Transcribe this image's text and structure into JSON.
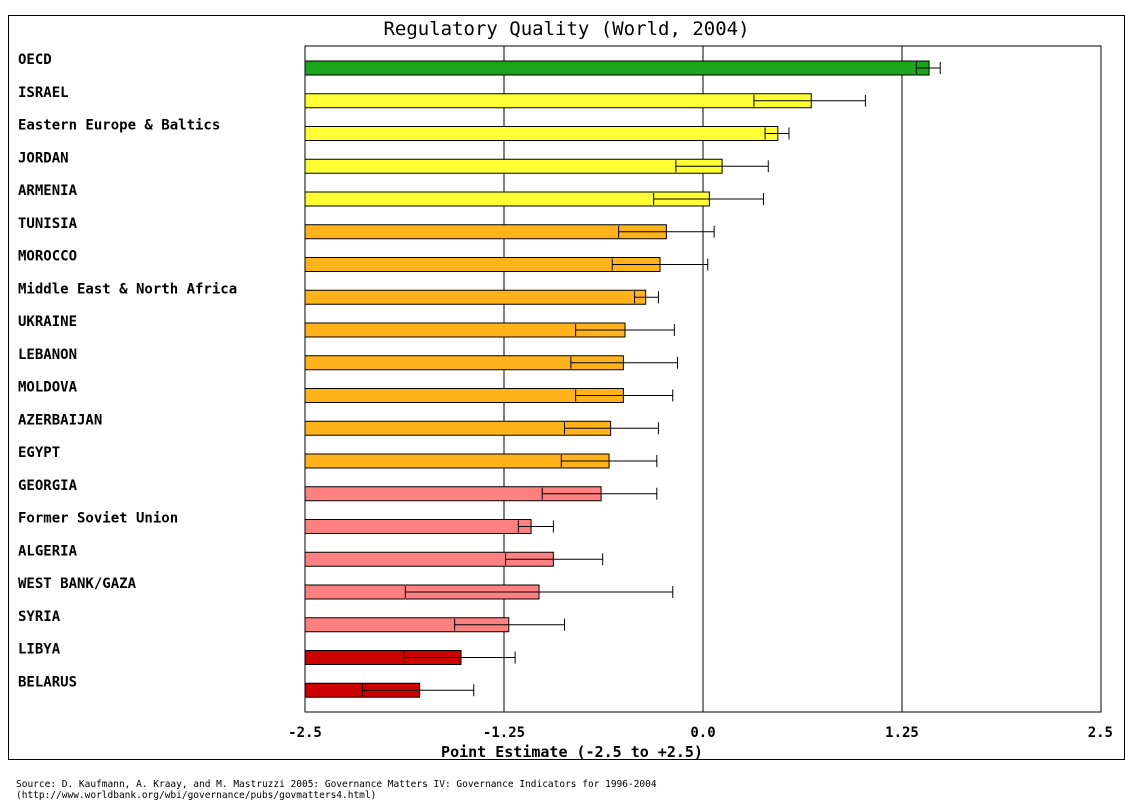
{
  "chart_data": {
    "type": "bar",
    "orientation": "horizontal",
    "title": "Regulatory Quality (World, 2004)",
    "xlabel": "Point Estimate (-2.5 to +2.5)",
    "xlim": [
      -2.5,
      2.5
    ],
    "xticks": [
      "-2.5",
      "-1.25",
      "0.0",
      "1.25",
      "2.5"
    ],
    "xtick_values": [
      -2.5,
      -1.25,
      0,
      1.25,
      2.5
    ],
    "grid": "vertical lines at ticks",
    "categories": [
      "OECD",
      "ISRAEL",
      "Eastern Europe & Baltics",
      "JORDAN",
      "ARMENIA",
      "TUNISIA",
      "MOROCCO",
      "Middle East & North Africa",
      "UKRAINE",
      "LEBANON",
      "MOLDOVA",
      "AZERBAIJAN",
      "EGYPT",
      "GEORGIA",
      "Former Soviet Union",
      "ALGERIA",
      "WEST BANK/GAZA",
      "SYRIA",
      "LIBYA",
      "BELARUS"
    ],
    "values": [
      1.42,
      0.68,
      0.47,
      0.12,
      0.04,
      -0.23,
      -0.27,
      -0.36,
      -0.49,
      -0.5,
      -0.5,
      -0.58,
      -0.59,
      -0.64,
      -1.08,
      -0.94,
      -1.03,
      -1.22,
      -1.52,
      -1.78
    ],
    "err_low": [
      1.34,
      0.32,
      0.39,
      -0.17,
      -0.31,
      -0.53,
      -0.57,
      -0.43,
      -0.8,
      -0.83,
      -0.8,
      -0.87,
      -0.89,
      -1.01,
      -1.16,
      -1.24,
      -1.87,
      -1.56,
      -1.88,
      -2.14
    ],
    "err_high": [
      1.49,
      1.02,
      0.54,
      0.41,
      0.38,
      0.07,
      0.03,
      -0.28,
      -0.18,
      -0.16,
      -0.19,
      -0.28,
      -0.29,
      -0.29,
      -0.94,
      -0.63,
      -0.19,
      -0.87,
      -1.18,
      -1.44
    ],
    "colors": [
      "#1aa51a",
      "#ffff33",
      "#ffff33",
      "#ffff33",
      "#ffff33",
      "#ffb31a",
      "#ffb31a",
      "#ffb31a",
      "#ffb31a",
      "#ffb31a",
      "#ffb31a",
      "#ffb31a",
      "#ffb31a",
      "#ff8080",
      "#ff8080",
      "#ff8080",
      "#ff8080",
      "#ff8080",
      "#cc0000",
      "#cc0000"
    ]
  },
  "source": {
    "line1": "Source: D. Kaufmann, A. Kraay, and M. Mastruzzi 2005: Governance Matters IV: Governance Indicators for 1996-2004",
    "line2": "(http://www.worldbank.org/wbi/governance/pubs/govmatters4.html)"
  }
}
